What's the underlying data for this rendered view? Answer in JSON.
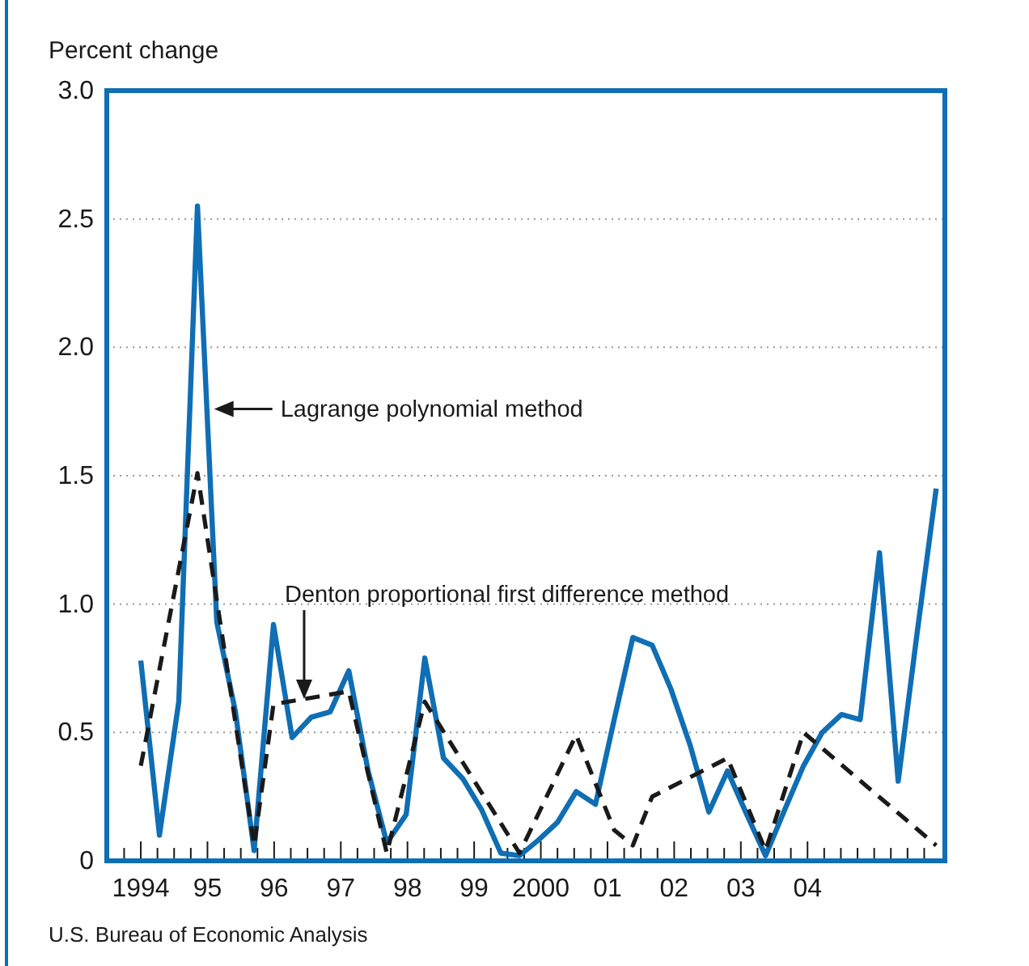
{
  "chart_data": {
    "type": "line",
    "ylabel": "Percent change",
    "xlim": [
      1993.49,
      2006.06
    ],
    "ylim": [
      0,
      3.0
    ],
    "yticks": [
      0,
      {
        "value": 0.5,
        "label": "0.5"
      },
      {
        "value": 1,
        "label": "1.0"
      },
      {
        "value": 1.5,
        "label": "1.5"
      },
      {
        "value": 2,
        "label": "2.0"
      },
      {
        "value": 2.5,
        "label": "2.5"
      },
      {
        "value": 3,
        "label": "3.0"
      }
    ],
    "xticks": [
      {
        "value": 1993.75,
        "label": null
      },
      1994,
      {
        "value": 1994.25,
        "label": null
      },
      {
        "value": 1994.5,
        "label": null
      },
      {
        "value": 1994.75,
        "label": null
      },
      {
        "value": 1995,
        "label": "95"
      },
      {
        "value": 1995.25,
        "label": null
      },
      {
        "value": 1995.5,
        "label": null
      },
      {
        "value": 1995.75,
        "label": null
      },
      {
        "value": 1996,
        "label": "96"
      },
      {
        "value": 1996.25,
        "label": null
      },
      {
        "value": 1996.5,
        "label": null
      },
      {
        "value": 1996.75,
        "label": null
      },
      {
        "value": 1997,
        "label": "97"
      },
      {
        "value": 1997.25,
        "label": null
      },
      {
        "value": 1997.5,
        "label": null
      },
      {
        "value": 1997.75,
        "label": null
      },
      {
        "value": 1998,
        "label": "98"
      },
      {
        "value": 1998.25,
        "label": null
      },
      {
        "value": 1998.5,
        "label": null
      },
      {
        "value": 1998.75,
        "label": null
      },
      {
        "value": 1999,
        "label": "99"
      },
      {
        "value": 1999.25,
        "label": null
      },
      {
        "value": 1999.5,
        "label": null
      },
      {
        "value": 1999.75,
        "label": null
      },
      2000,
      {
        "value": 2000.25,
        "label": null
      },
      {
        "value": 2000.5,
        "label": null
      },
      {
        "value": 2000.75,
        "label": null
      },
      {
        "value": 2001,
        "label": "01"
      },
      {
        "value": 2001.25,
        "label": null
      },
      {
        "value": 2001.5,
        "label": null
      },
      {
        "value": 2001.75,
        "label": null
      },
      {
        "value": 2002,
        "label": "02"
      },
      {
        "value": 2002.25,
        "label": null
      },
      {
        "value": 2002.5,
        "label": null
      },
      {
        "value": 2002.75,
        "label": null
      },
      {
        "value": 2003,
        "label": "03"
      },
      {
        "value": 2003.25,
        "label": null
      },
      {
        "value": 2003.5,
        "label": null
      },
      {
        "value": 2003.75,
        "label": null
      },
      {
        "value": 2004,
        "label": "04"
      },
      {
        "value": 2004.25,
        "label": null
      },
      {
        "value": 2004.5,
        "label": null
      },
      {
        "value": 2004.75,
        "label": null
      },
      {
        "value": 2005,
        "label": null
      },
      {
        "value": 2005.25,
        "label": null
      },
      {
        "value": 2005.5,
        "label": null
      },
      {
        "value": 2005.75,
        "label": null
      }
    ],
    "grid": "y",
    "marker": "none",
    "series": [
      {
        "color": "#0f6eb4",
        "line_style": "solid",
        "x": [
          1994,
          1994.28,
          1994.57,
          1994.85,
          1995.14,
          1995.42,
          1995.7,
          1995.99,
          1996.27,
          1996.56,
          1996.84,
          1997.12,
          1997.41,
          1997.69,
          1997.98,
          1998.26,
          1998.54,
          1998.83,
          1999.11,
          1999.4,
          1999.68,
          1999.96,
          2000.25,
          2000.53,
          2000.82,
          2001.1,
          2001.38,
          2001.67,
          2001.95,
          2002.24,
          2002.52,
          2002.8,
          2003.09,
          2003.37,
          2003.66,
          2003.94,
          2004.22,
          2004.51,
          2004.79,
          2005.08,
          2005.36,
          2005.64,
          2005.93
        ],
        "values": [
          0.78,
          0.1,
          0.62,
          2.55,
          0.93,
          0.58,
          0.04,
          0.92,
          0.48,
          0.56,
          0.58,
          0.74,
          0.35,
          0.07,
          0.18,
          0.79,
          0.4,
          0.32,
          0.2,
          0.03,
          0.02,
          0.08,
          0.15,
          0.27,
          0.22,
          0.55,
          0.87,
          0.84,
          0.67,
          0.45,
          0.19,
          0.35,
          0.18,
          0.02,
          0.2,
          0.37,
          0.5,
          0.57,
          0.55,
          1.2,
          0.31,
          0.88,
          1.45
        ]
      },
      {
        "color": "#1a1a1a",
        "line_style": "dashed",
        "x": [
          1994,
          1994.85,
          1995.7,
          1995.99,
          1997.12,
          1997.69,
          1998.26,
          1999.68,
          2000.53,
          2001.1,
          2001.38,
          2001.67,
          2002.8,
          2003.37,
          2003.94,
          2005.93
        ],
        "values": [
          0.37,
          1.51,
          0.06,
          0.61,
          0.66,
          0.03,
          0.62,
          0.03,
          0.49,
          0.12,
          0.06,
          0.25,
          0.4,
          0.04,
          0.5,
          0.06
        ]
      }
    ],
    "annotations": [
      {
        "text": "Lagrange polynomial method",
        "x": 1995.1,
        "y": 1.76
      },
      {
        "text": "Denton proportional first difference method",
        "x": 1996.45,
        "y": 0.63
      },
      "U.S. Bureau of Economic Analysis"
    ]
  }
}
